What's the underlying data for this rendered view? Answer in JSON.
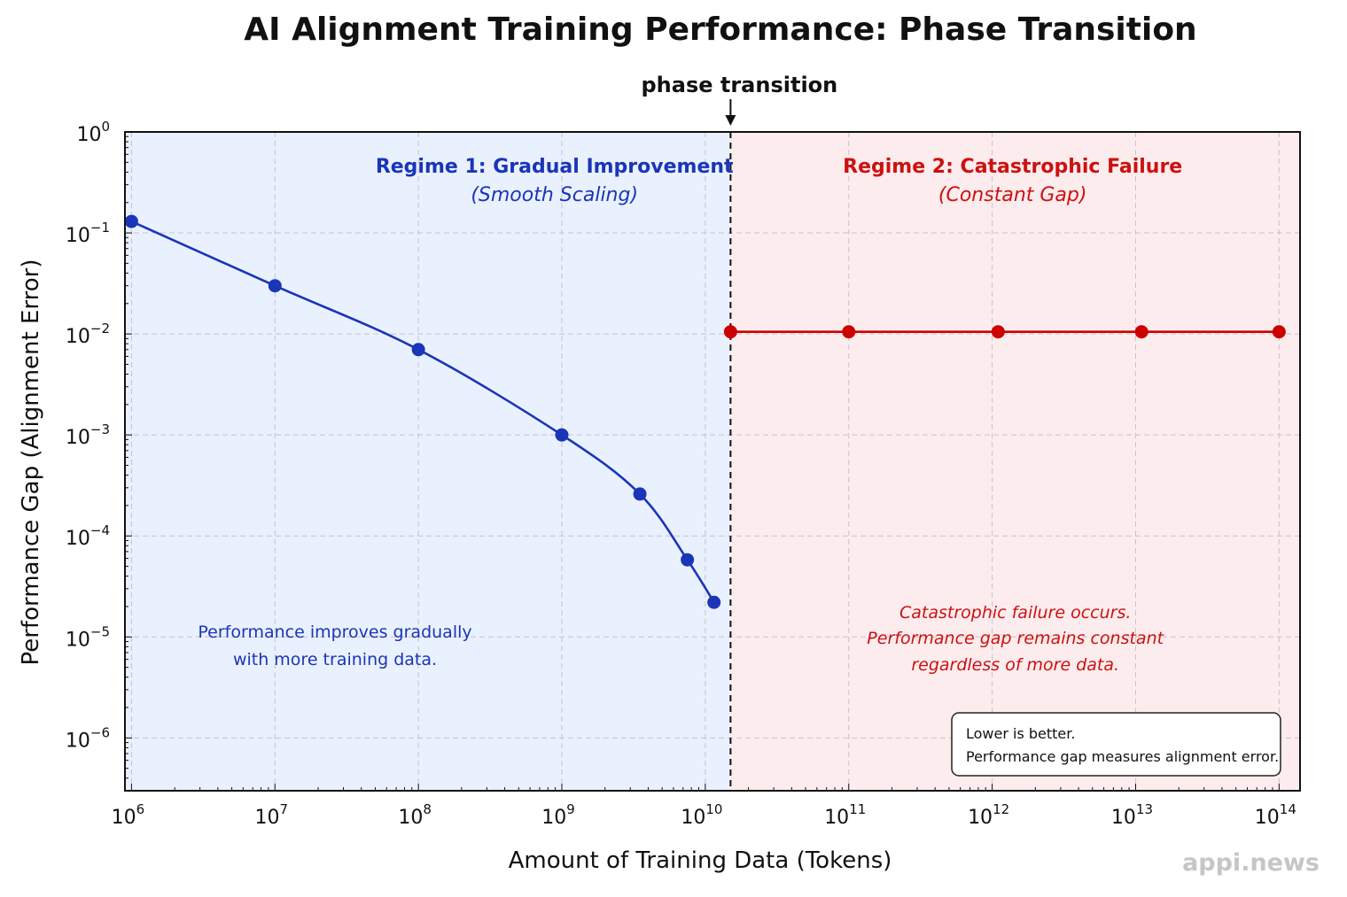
{
  "chart_data": {
    "type": "line",
    "title": "AI Alignment Training Performance: Phase Transition",
    "xlabel": "Amount of Training Data (Tokens)",
    "ylabel": "Performance Gap (Alignment Error)",
    "x_scale": "log",
    "y_scale": "log",
    "xlim": [
      900000,
      140000000000000
    ],
    "ylim": [
      3e-07,
      1
    ],
    "grid": true,
    "x_ticks": [
      {
        "base": "10",
        "exp": "6",
        "value": 1000000
      },
      {
        "base": "10",
        "exp": "7",
        "value": 10000000
      },
      {
        "base": "10",
        "exp": "8",
        "value": 100000000
      },
      {
        "base": "10",
        "exp": "9",
        "value": 1000000000
      },
      {
        "base": "10",
        "exp": "10",
        "value": 10000000000
      },
      {
        "base": "10",
        "exp": "11",
        "value": 100000000000
      },
      {
        "base": "10",
        "exp": "12",
        "value": 1000000000000
      },
      {
        "base": "10",
        "exp": "13",
        "value": 10000000000000
      },
      {
        "base": "10",
        "exp": "14",
        "value": 100000000000000
      }
    ],
    "y_ticks": [
      {
        "base": "10",
        "exp": "0",
        "value": 1
      },
      {
        "base": "10",
        "exp": "−1",
        "value": 0.1
      },
      {
        "base": "10",
        "exp": "−2",
        "value": 0.01
      },
      {
        "base": "10",
        "exp": "−3",
        "value": 0.001
      },
      {
        "base": "10",
        "exp": "−4",
        "value": 0.0001
      },
      {
        "base": "10",
        "exp": "−5",
        "value": 1e-05
      },
      {
        "base": "10",
        "exp": "−6",
        "value": 1e-06
      }
    ],
    "series": [
      {
        "name": "Regime 1: Gradual Improvement",
        "color": "#1a35b8",
        "x": [
          1000000,
          10000000,
          100000000,
          1000000000,
          3500000000,
          7500000000,
          11500000000
        ],
        "y": [
          0.13,
          0.03,
          0.007,
          0.001,
          0.00026,
          5.8e-05,
          2.2e-05
        ]
      },
      {
        "name": "Regime 2: Catastrophic Failure",
        "color": "#cc0000",
        "x": [
          15000000000,
          100000000000,
          1100000000000,
          11000000000000,
          100000000000000
        ],
        "y": [
          0.0105,
          0.0105,
          0.0105,
          0.0105,
          0.0105
        ]
      }
    ],
    "phase_transition": {
      "x": 15000000000,
      "label": "phase transition"
    },
    "regions": [
      {
        "title": "Regime 1: Gradual Improvement",
        "subtitle": "(Smooth Scaling)",
        "note_lines": [
          "Performance improves gradually",
          "with more training data."
        ],
        "color": "#1a35b8",
        "fill": "#eaf1fe"
      },
      {
        "title": "Regime 2: Catastrophic Failure",
        "subtitle": "(Constant Gap)",
        "note_lines": [
          "Catastrophic failure occurs.",
          "Performance gap remains constant",
          "regardless of more data."
        ],
        "color": "#cc1111",
        "fill": "#fdecee"
      }
    ],
    "legend_box": {
      "lines": [
        "Lower is better.",
        "Performance gap measures alignment error."
      ],
      "placement": "bottom-right"
    }
  },
  "watermark": "appi.news"
}
